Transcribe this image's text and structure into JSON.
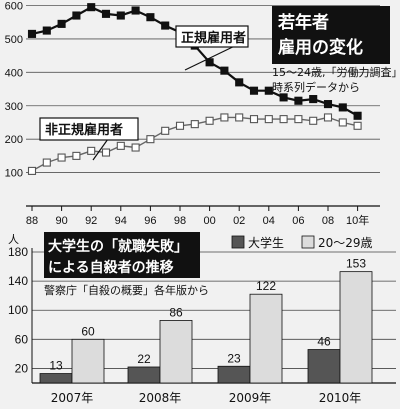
{
  "chart_data": [
    {
      "type": "line",
      "title": "若年者雇用の変化",
      "subtitle": "15～24歳,「労働力調査」時系列データから",
      "unit": "",
      "x": [
        1988,
        1989,
        1990,
        1991,
        1992,
        1993,
        1994,
        1995,
        1996,
        1997,
        1998,
        1999,
        2000,
        2001,
        2002,
        2003,
        2004,
        2005,
        2006,
        2007,
        2008,
        2009,
        2010
      ],
      "xticks": [
        "88",
        "90",
        "92",
        "94",
        "96",
        "98",
        "00",
        "02",
        "04",
        "06",
        "08",
        "10年"
      ],
      "ylim": [
        0,
        600
      ],
      "yticks": [
        100,
        200,
        300,
        400,
        500,
        600
      ],
      "yticks_display": [
        "100",
        "200",
        "300",
        "400",
        "500",
        "600"
      ],
      "grid": true,
      "series": [
        {
          "name": "正規雇用者",
          "marker": "filled-square",
          "color": "#111111",
          "values": [
            515,
            525,
            545,
            570,
            595,
            575,
            570,
            585,
            565,
            540,
            520,
            480,
            430,
            405,
            370,
            345,
            345,
            325,
            315,
            320,
            305,
            295,
            270
          ]
        },
        {
          "name": "非正規雇用者",
          "marker": "open-square",
          "color": "#777777",
          "values": [
            105,
            130,
            145,
            150,
            165,
            160,
            180,
            175,
            200,
            225,
            240,
            245,
            255,
            265,
            265,
            260,
            260,
            260,
            260,
            255,
            265,
            250,
            240
          ]
        }
      ]
    },
    {
      "type": "bar",
      "title": "大学生の「就職失敗」による自殺者の推移",
      "subtitle": "警察庁「自殺の概要」各年版から",
      "unit": "人",
      "categories": [
        "2007年",
        "2008年",
        "2009年",
        "2010年"
      ],
      "ylim": [
        0,
        180
      ],
      "yticks": [
        20,
        60,
        100,
        140,
        180
      ],
      "yticks_display": [
        "20",
        "60",
        "100",
        "140",
        "180"
      ],
      "series": [
        {
          "name": "大学生",
          "color": "#555555",
          "values": [
            13,
            22,
            23,
            46
          ]
        },
        {
          "name": "20～29歳",
          "color": "#dcdcdc",
          "values": [
            60,
            86,
            122,
            153
          ]
        }
      ]
    }
  ]
}
